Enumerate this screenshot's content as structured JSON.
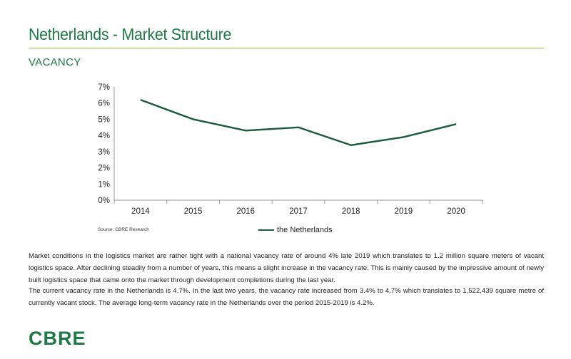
{
  "header": {
    "title": "Netherlands - Market Structure",
    "subtitle": "VACANCY"
  },
  "chart_data": {
    "type": "line",
    "title": "",
    "xlabel": "",
    "ylabel": "",
    "categories": [
      "2014",
      "2015",
      "2016",
      "2017",
      "2018",
      "2019",
      "2020"
    ],
    "series": [
      {
        "name": "the Netherlands",
        "values": [
          6.2,
          5.0,
          4.3,
          4.5,
          3.4,
          3.9,
          4.7
        ],
        "color": "#1a5c3a"
      }
    ],
    "ylim": [
      0,
      7
    ],
    "yticks": [
      "0%",
      "1%",
      "2%",
      "3%",
      "4%",
      "5%",
      "6%",
      "7%"
    ],
    "grid": false,
    "legend": "bottom-center"
  },
  "source": "Source: CBRE Research",
  "paragraphs": [
    "Market conditions in the logistics market are rather tight with a national vacancy rate of around 4% late 2019 which translates to 1.2 million square meters of vacant logistics space. After declining steadily from a number of years, this means a slight increase in the vacancy rate. This is mainly caused by the impressive amount of newly built logistics space that came onto the market through development completions during the last year.",
    "The current vacancy rate in the Netherlands is 4.7%. In the last two years, the vacancy rate increased from 3.4% to 4.7% which translates to 1,522,439 square metre of currently vacant stock. The average long-term vacancy rate in the Netherlands over the period 2015-2019 is 4.2%."
  ],
  "logo": "CBRE",
  "colors": {
    "brand": "#1d7a45",
    "rule": "#8cc63f",
    "line": "#1a5c3a"
  }
}
